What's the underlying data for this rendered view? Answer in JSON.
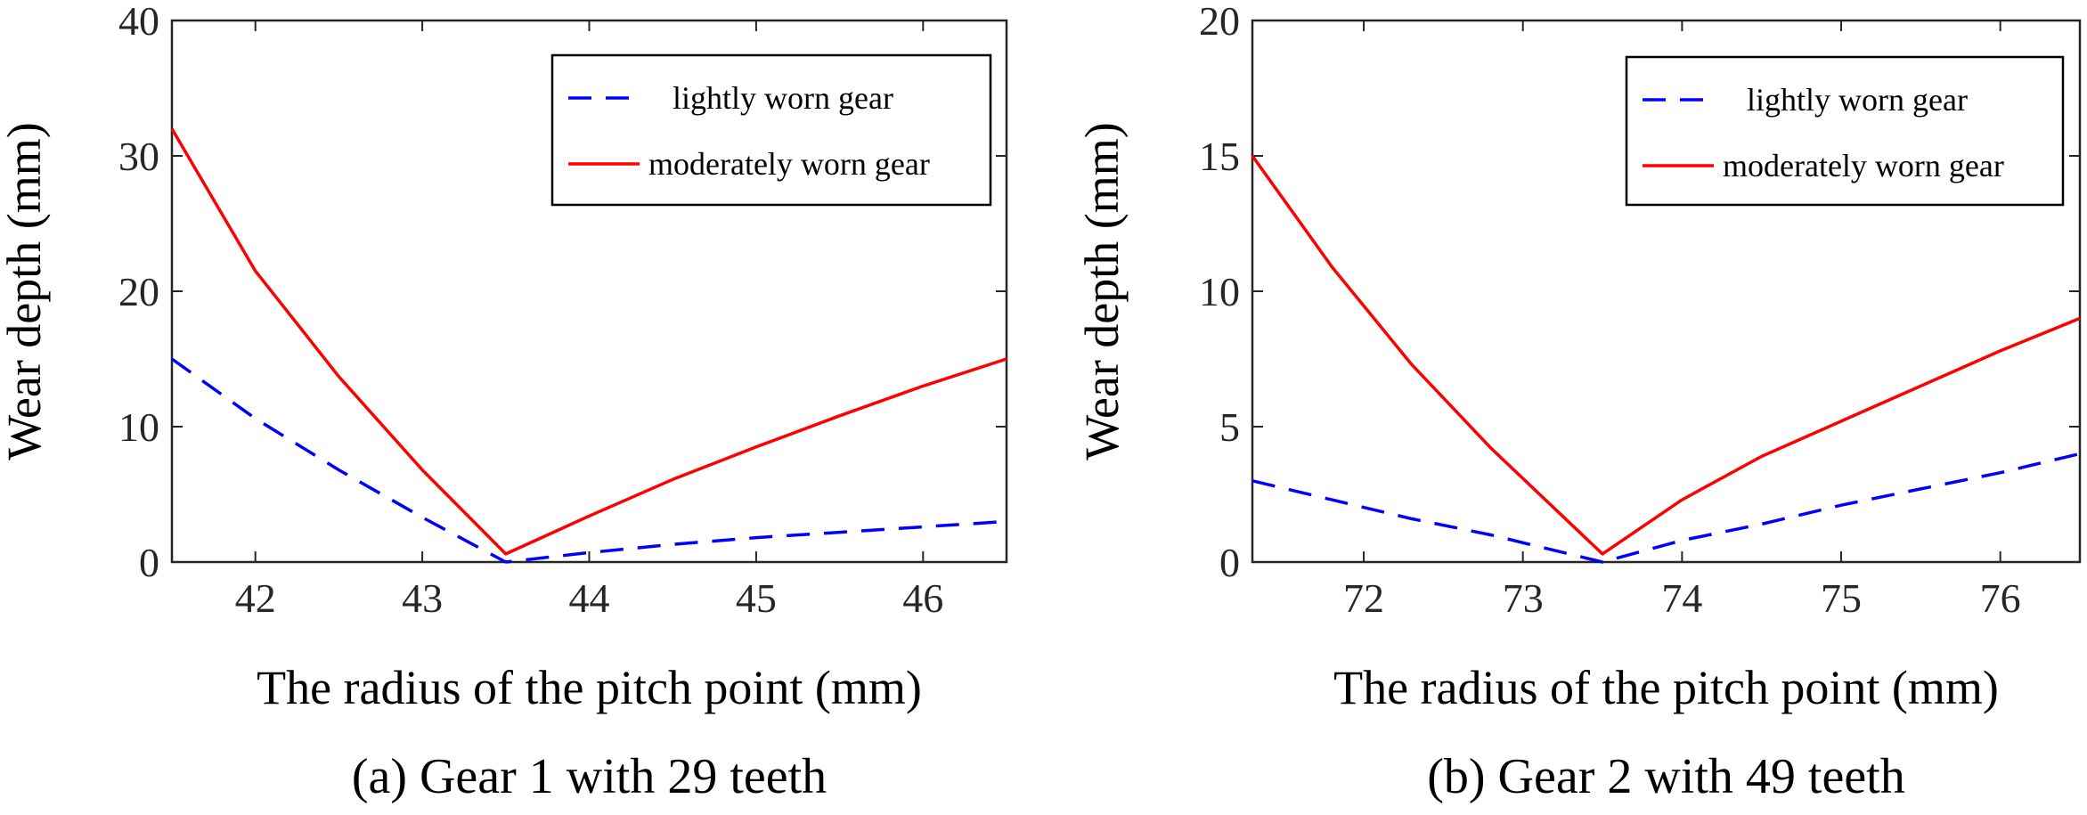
{
  "chart_data": [
    {
      "type": "line",
      "caption": "(a) Gear 1 with 29 teeth",
      "xlabel": "The radius of the pitch point (mm)",
      "ylabel": "Wear depth (mm)",
      "xlim": [
        41.5,
        46.5
      ],
      "ylim": [
        0,
        40
      ],
      "xticks": [
        42,
        43,
        44,
        45,
        46
      ],
      "yticks": [
        0,
        10,
        20,
        30,
        40
      ],
      "legend_position": "top-right",
      "series": [
        {
          "name": "lightly worn gear",
          "style": "dashed",
          "color": "#0000ff",
          "x": [
            41.5,
            42.0,
            42.5,
            43.0,
            43.5,
            44.0,
            44.5,
            45.0,
            45.5,
            46.0,
            46.5
          ],
          "y": [
            15.0,
            10.6,
            6.8,
            3.3,
            0.0,
            0.7,
            1.3,
            1.8,
            2.2,
            2.6,
            3.0
          ]
        },
        {
          "name": "moderately worn gear",
          "style": "solid",
          "color": "#ff0000",
          "x": [
            41.5,
            42.0,
            42.5,
            43.0,
            43.5,
            44.0,
            44.5,
            45.0,
            45.5,
            46.0,
            46.5
          ],
          "y": [
            32.0,
            21.5,
            13.7,
            6.8,
            0.6,
            3.4,
            6.1,
            8.5,
            10.8,
            13.0,
            15.0
          ]
        }
      ]
    },
    {
      "type": "line",
      "caption": "(b) Gear 2 with 49 teeth",
      "xlabel": "The radius of the pitch point (mm)",
      "ylabel": "Wear depth (mm)",
      "xlim": [
        71.3,
        76.5
      ],
      "ylim": [
        0,
        20
      ],
      "xticks": [
        72,
        73,
        74,
        75,
        76
      ],
      "yticks": [
        0,
        5,
        10,
        15,
        20
      ],
      "legend_position": "top-right",
      "series": [
        {
          "name": "lightly worn gear",
          "style": "dashed",
          "color": "#0000ff",
          "x": [
            71.3,
            71.8,
            72.3,
            72.8,
            73.5,
            74.0,
            74.5,
            75.0,
            75.5,
            76.0,
            76.5
          ],
          "y": [
            3.0,
            2.3,
            1.6,
            1.0,
            0.0,
            0.8,
            1.4,
            2.1,
            2.7,
            3.3,
            4.0
          ]
        },
        {
          "name": "moderately worn gear",
          "style": "solid",
          "color": "#ff0000",
          "x": [
            71.3,
            71.8,
            72.3,
            72.8,
            73.5,
            74.0,
            74.5,
            75.0,
            75.5,
            76.0,
            76.5
          ],
          "y": [
            15.0,
            10.9,
            7.3,
            4.2,
            0.3,
            2.3,
            3.9,
            5.2,
            6.5,
            7.8,
            9.0
          ]
        }
      ]
    }
  ]
}
